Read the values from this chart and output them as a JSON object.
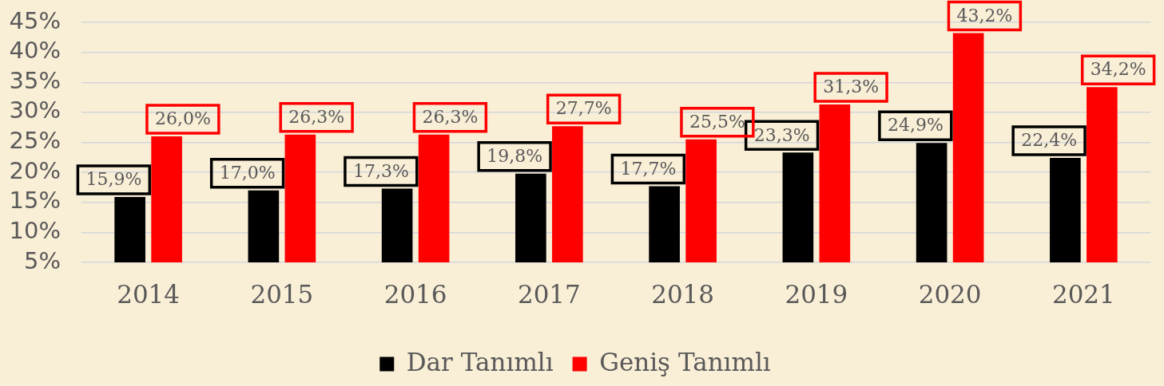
{
  "chart_data": {
    "type": "bar",
    "categories": [
      "2014",
      "2015",
      "2016",
      "2017",
      "2018",
      "2019",
      "2020",
      "2021"
    ],
    "series": [
      {
        "name": "Dar Tanımlı",
        "color": "#000000",
        "values": [
          15.9,
          17.0,
          17.3,
          19.8,
          17.7,
          23.3,
          24.9,
          22.4
        ],
        "value_labels": [
          "15,9%",
          "17,0%",
          "17,3%",
          "19,8%",
          "17,7%",
          "23,3%",
          "24,9%",
          "22,4%"
        ]
      },
      {
        "name": "Geniş Tanımlı",
        "color": "#ff0000",
        "values": [
          26.0,
          26.3,
          26.3,
          27.7,
          25.5,
          31.3,
          43.2,
          34.2
        ],
        "value_labels": [
          "26,0%",
          "26,3%",
          "26,3%",
          "27,7%",
          "25,5%",
          "31,3%",
          "43,2%",
          "34,2%"
        ]
      }
    ],
    "ylim": [
      5,
      45
    ],
    "yticks": [
      {
        "value": 5,
        "label": "5%"
      },
      {
        "value": 10,
        "label": "10%"
      },
      {
        "value": 15,
        "label": "15%"
      },
      {
        "value": 20,
        "label": "20%"
      },
      {
        "value": 25,
        "label": "25%"
      },
      {
        "value": 30,
        "label": "30%"
      },
      {
        "value": 35,
        "label": "35%"
      },
      {
        "value": 40,
        "label": "40%"
      },
      {
        "value": 45,
        "label": "45%"
      }
    ],
    "grid": "y",
    "legend": "bottom"
  }
}
